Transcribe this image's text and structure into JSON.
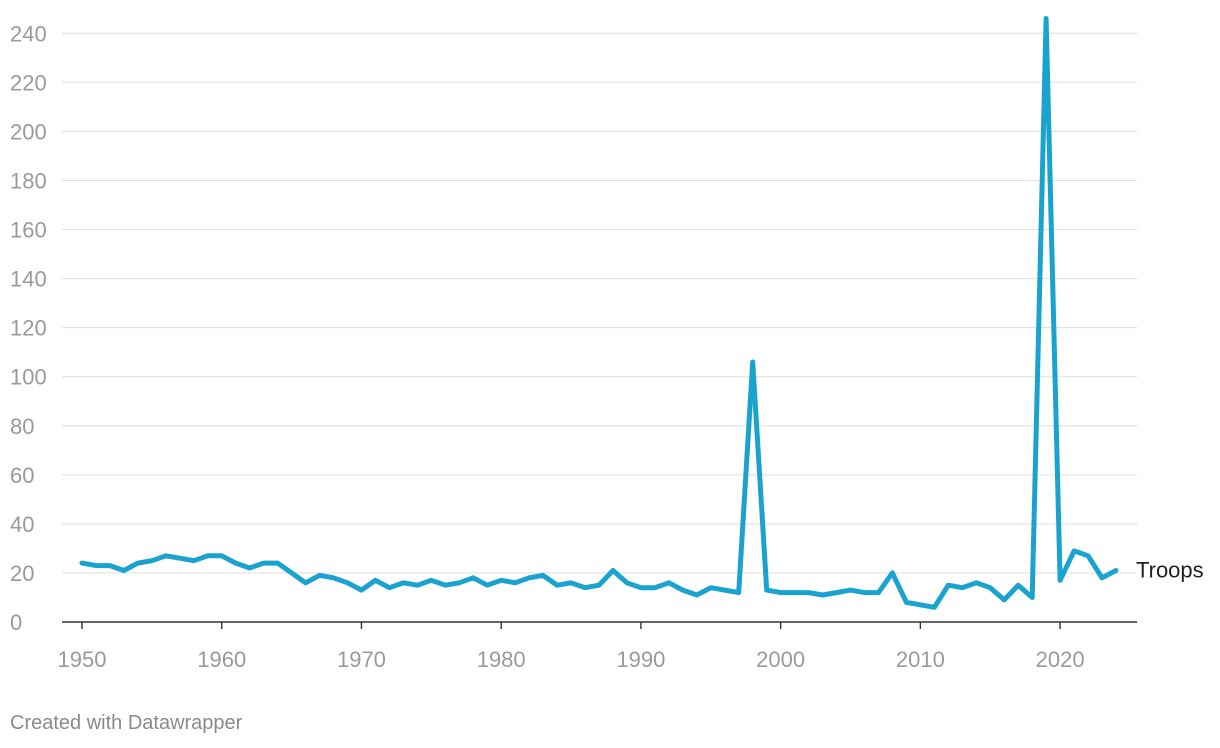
{
  "chart_data": {
    "type": "line",
    "title": "",
    "xlabel": "",
    "ylabel": "",
    "xlim": [
      1950,
      2024
    ],
    "ylim": [
      0,
      245
    ],
    "x_ticks": [
      1950,
      1960,
      1970,
      1980,
      1990,
      2000,
      2010,
      2020
    ],
    "y_ticks": [
      0,
      20,
      40,
      60,
      80,
      100,
      120,
      140,
      160,
      180,
      200,
      220,
      240
    ],
    "grid": true,
    "legend": "none (series labeled at end of line)",
    "line_color": "#1ba3cf",
    "series": [
      {
        "name": "Troops",
        "x": [
          1950,
          1951,
          1952,
          1953,
          1954,
          1955,
          1956,
          1957,
          1958,
          1959,
          1960,
          1961,
          1962,
          1963,
          1964,
          1965,
          1966,
          1967,
          1968,
          1969,
          1970,
          1971,
          1972,
          1973,
          1974,
          1975,
          1976,
          1977,
          1978,
          1979,
          1980,
          1981,
          1982,
          1983,
          1984,
          1985,
          1986,
          1987,
          1988,
          1989,
          1990,
          1991,
          1992,
          1993,
          1994,
          1995,
          1996,
          1997,
          1998,
          1999,
          2000,
          2001,
          2002,
          2003,
          2004,
          2005,
          2006,
          2007,
          2008,
          2009,
          2010,
          2011,
          2012,
          2013,
          2014,
          2015,
          2016,
          2017,
          2018,
          2019,
          2020,
          2021,
          2022,
          2023,
          2024
        ],
        "values": [
          24,
          23,
          23,
          21,
          24,
          25,
          27,
          26,
          25,
          27,
          27,
          24,
          22,
          24,
          24,
          20,
          16,
          19,
          18,
          16,
          13,
          17,
          14,
          16,
          15,
          17,
          15,
          16,
          18,
          15,
          17,
          16,
          18,
          19,
          15,
          16,
          14,
          15,
          21,
          16,
          14,
          14,
          16,
          13,
          11,
          14,
          13,
          12,
          106,
          13,
          12,
          12,
          12,
          11,
          12,
          13,
          12,
          12,
          20,
          8,
          7,
          6,
          15,
          14,
          16,
          14,
          9,
          15,
          10,
          246,
          17,
          29,
          27,
          18,
          21
        ]
      }
    ]
  },
  "footer": {
    "credit": "Created with Datawrapper"
  }
}
